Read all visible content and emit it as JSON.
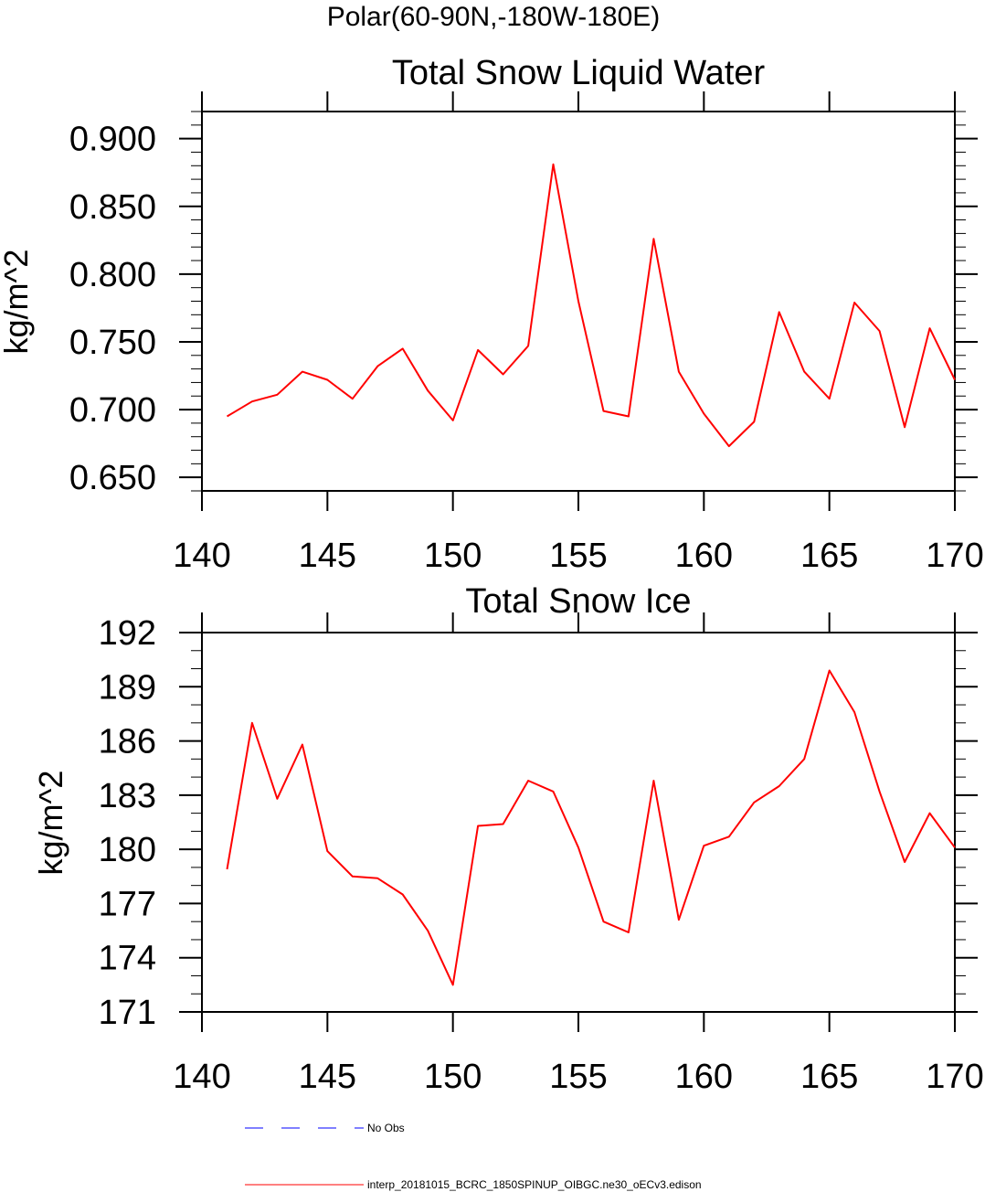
{
  "header": {
    "title": "Polar(60-90N,-180W-180E)"
  },
  "chart_data": [
    {
      "type": "line",
      "title": "Total Snow Liquid Water",
      "xlabel": "",
      "ylabel": "kg/m^2",
      "xlim": [
        140,
        170
      ],
      "ylim": [
        0.64,
        0.92
      ],
      "xticks": [
        "140",
        "145",
        "150",
        "155",
        "160",
        "165",
        "170"
      ],
      "yticks": [
        "0.650",
        "0.700",
        "0.750",
        "0.800",
        "0.850",
        "0.900"
      ],
      "ytick_values": [
        0.65,
        0.7,
        0.75,
        0.8,
        0.85,
        0.9
      ],
      "series": [
        {
          "name": "interp_20181015_BCRC_1850SPINUP_OIBGC.ne30_oECv3.edison",
          "color": "#ff0000",
          "x": [
            141,
            142,
            143,
            144,
            145,
            146,
            147,
            148,
            149,
            150,
            151,
            152,
            153,
            154,
            155,
            156,
            157,
            158,
            159,
            160,
            161,
            162,
            163,
            164,
            165,
            166,
            167,
            168,
            169,
            170
          ],
          "values": [
            0.695,
            0.706,
            0.711,
            0.728,
            0.722,
            0.708,
            0.732,
            0.745,
            0.714,
            0.692,
            0.744,
            0.726,
            0.747,
            0.881,
            0.78,
            0.699,
            0.695,
            0.826,
            0.728,
            0.697,
            0.673,
            0.691,
            0.772,
            0.728,
            0.708,
            0.779,
            0.758,
            0.687,
            0.76,
            0.722
          ]
        }
      ]
    },
    {
      "type": "line",
      "title": "Total Snow Ice",
      "xlabel": "",
      "ylabel": "kg/m^2",
      "xlim": [
        140,
        170
      ],
      "ylim": [
        171,
        192
      ],
      "xticks": [
        "140",
        "145",
        "150",
        "155",
        "160",
        "165",
        "170"
      ],
      "yticks": [
        "171",
        "174",
        "177",
        "180",
        "183",
        "186",
        "189",
        "192"
      ],
      "ytick_values": [
        171,
        174,
        177,
        180,
        183,
        186,
        189,
        192
      ],
      "series": [
        {
          "name": "interp_20181015_BCRC_1850SPINUP_OIBGC.ne30_oECv3.edison",
          "color": "#ff0000",
          "x": [
            141,
            142,
            143,
            144,
            145,
            146,
            147,
            148,
            149,
            150,
            151,
            152,
            153,
            154,
            155,
            156,
            157,
            158,
            159,
            160,
            161,
            162,
            163,
            164,
            165,
            166,
            167,
            168,
            169,
            170
          ],
          "values": [
            178.9,
            187.0,
            182.8,
            185.8,
            179.9,
            178.5,
            178.4,
            177.5,
            175.5,
            172.5,
            181.3,
            181.4,
            183.8,
            183.2,
            180.1,
            176.0,
            175.4,
            183.8,
            176.1,
            180.2,
            180.7,
            182.6,
            183.5,
            185.0,
            189.9,
            187.6,
            183.2,
            179.3,
            182.0,
            180.1
          ]
        }
      ]
    }
  ],
  "legend": {
    "items": [
      {
        "label": "No Obs",
        "color": "#0000ff",
        "style": "dashed"
      },
      {
        "label": "interp_20181015_BCRC_1850SPINUP_OIBGC.ne30_oECv3.edison",
        "color": "#ff0000",
        "style": "solid"
      }
    ]
  }
}
